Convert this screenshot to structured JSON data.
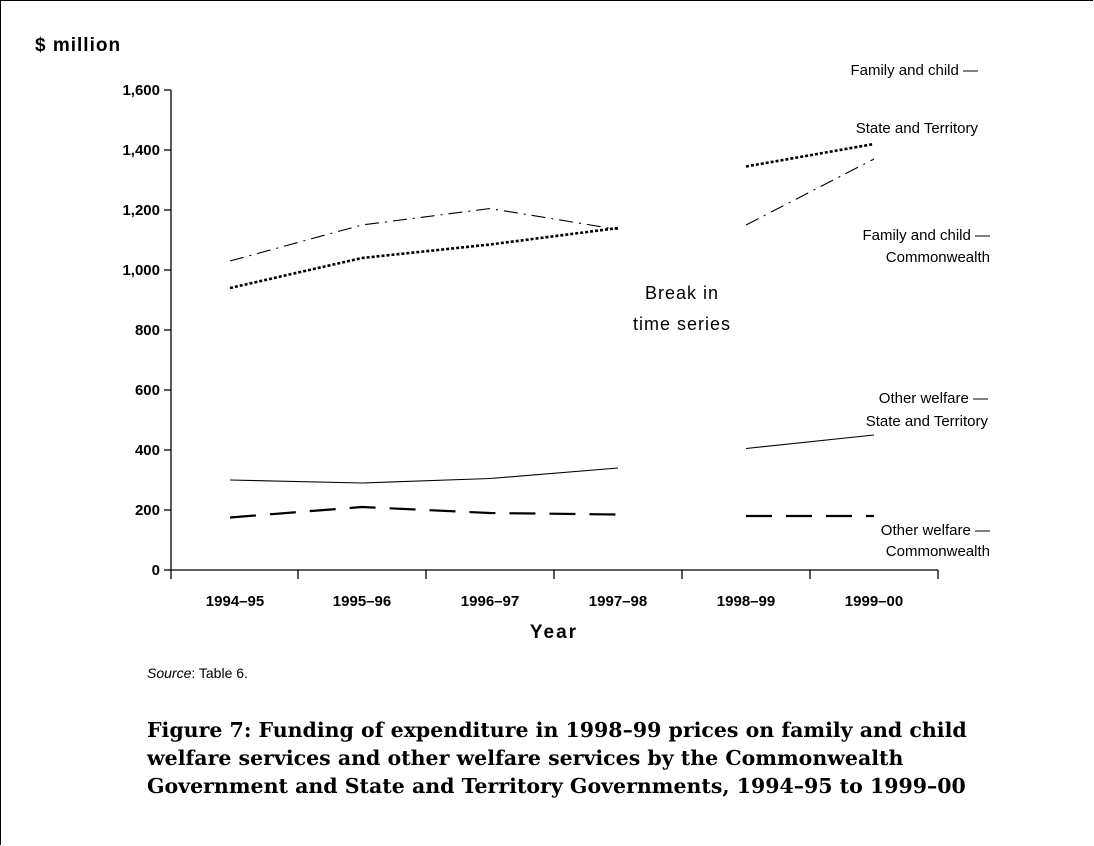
{
  "chart_data": {
    "type": "line",
    "ylabel": "$ million",
    "xlabel": "Year",
    "categories": [
      "1994–95",
      "1995–96",
      "1996–97",
      "1997–98",
      "1998–99",
      "1999–00"
    ],
    "ylim": [
      0,
      1600
    ],
    "yticks": [
      0,
      200,
      400,
      600,
      800,
      1000,
      1200,
      1400,
      1600
    ],
    "ytick_labels": [
      "0",
      "200",
      "400",
      "600",
      "800",
      "1,000",
      "1,200",
      "1,400",
      "1,600"
    ],
    "break_label": [
      "Break in",
      "time series"
    ],
    "series": [
      {
        "name": "Family and child — State and Territory",
        "label_lines": [
          "Family and child —",
          "State and Territory"
        ],
        "values": [
          940,
          1040,
          1085,
          1140,
          1345,
          1420
        ],
        "style": "dotted",
        "color": "#000000"
      },
      {
        "name": "Family and child — Commonwealth",
        "label_lines": [
          "Family and child —",
          "Commonwealth"
        ],
        "values": [
          1030,
          1150,
          1205,
          1135,
          1150,
          1370
        ],
        "style": "dashdot",
        "color": "#000000"
      },
      {
        "name": "Other welfare — State and Territory",
        "label_lines": [
          "Other welfare —",
          "State and Territory"
        ],
        "values": [
          300,
          290,
          305,
          340,
          405,
          450
        ],
        "style": "solid",
        "color": "#000000"
      },
      {
        "name": "Other welfare — Commonwealth",
        "label_lines": [
          "Other welfare —",
          "Commonwealth"
        ],
        "values": [
          175,
          210,
          190,
          185,
          180,
          180
        ],
        "style": "longdash",
        "color": "#000000"
      }
    ]
  },
  "source": {
    "label": "Source",
    "text": ": Table 6."
  },
  "caption": "Figure 7: Funding of expenditure in 1998–99 prices on family and child welfare services and other welfare services by the Commonwealth Government and State and Territory Governments, 1994–95 to 1999–00"
}
